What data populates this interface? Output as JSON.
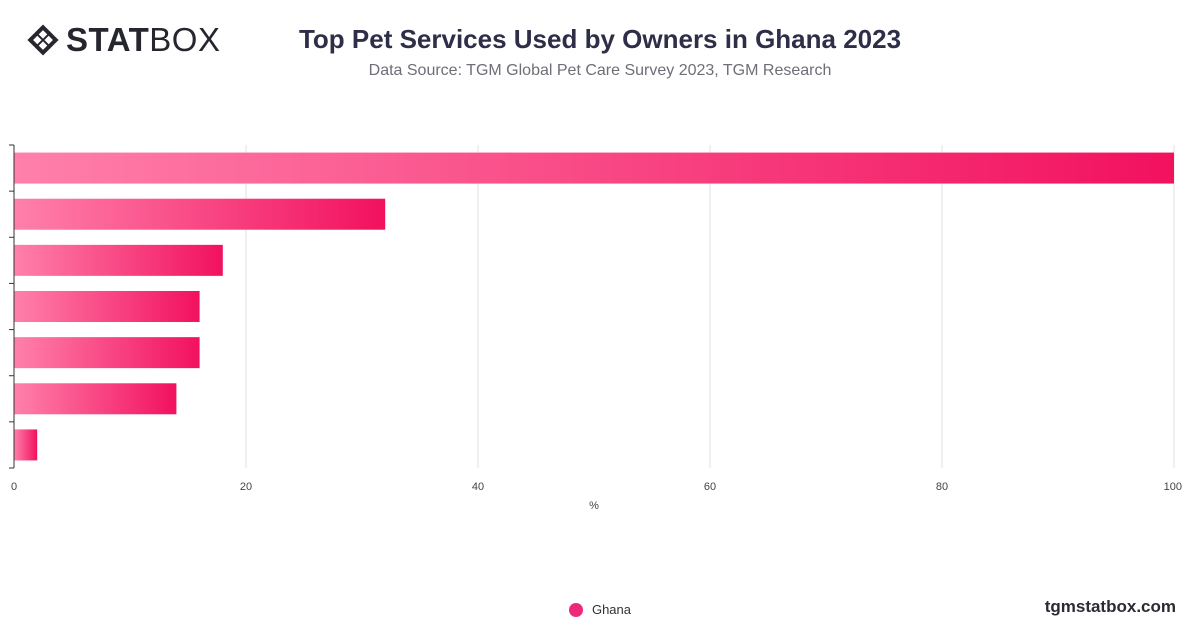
{
  "brand": {
    "logo_bold": "STAT",
    "logo_light": "BOX",
    "icon": "diamond-grid-icon"
  },
  "title": "Top Pet Services Used by Owners in Ghana 2023",
  "subtitle": "Data Source: TGM Global Pet Care Survey 2023, TGM Research",
  "footer": "tgmstatbox.com",
  "colors": {
    "bar_start": "#ff80ab",
    "bar_end": "#f2115f",
    "grid": "#e2e2e2",
    "axis": "#333333"
  },
  "chart_data": {
    "type": "bar",
    "orientation": "horizontal",
    "categories": [
      "",
      "",
      "",
      "",
      "",
      "",
      ""
    ],
    "series": [
      {
        "name": "Ghana",
        "values": [
          100,
          32,
          18,
          16,
          16,
          14,
          2
        ]
      }
    ],
    "xlabel": "%",
    "xlim": [
      0,
      100
    ],
    "xticks": [
      "0",
      "20",
      "40",
      "60",
      "80",
      "100"
    ],
    "grid": true,
    "legend": "bottom-center"
  }
}
